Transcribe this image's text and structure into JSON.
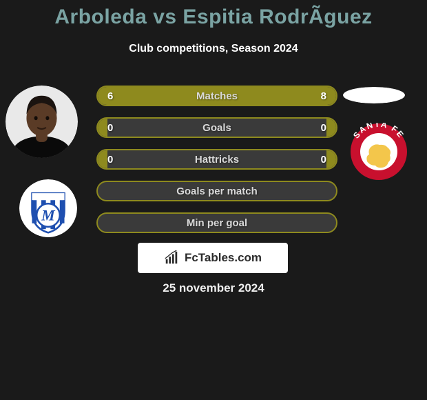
{
  "background_color": "#1a1a1a",
  "title": {
    "text": "Arboleda vs Espitia RodrÃ­guez",
    "color": "#7aa3a3",
    "fontsize": 30
  },
  "subtitle": {
    "text": "Club competitions, Season 2024",
    "color": "#ffffff",
    "fontsize": 16
  },
  "row_style": {
    "height": 30,
    "gap": 16,
    "track_bg": "#3a3a3a",
    "border_color": "#8e8a1e",
    "border_width": 2,
    "left_fill": "#8e8a1e",
    "right_fill": "#8e8a1e",
    "value_color": "#ffffff",
    "value_fontsize": 15,
    "label_color": "#d9d9d9",
    "label_fontsize": 15
  },
  "rows": [
    {
      "label": "Matches",
      "left": "6",
      "right": "8",
      "left_pct": 40,
      "right_pct": 60
    },
    {
      "label": "Goals",
      "left": "0",
      "right": "0",
      "left_pct": 4,
      "right_pct": 4
    },
    {
      "label": "Hattricks",
      "left": "0",
      "right": "0",
      "left_pct": 4,
      "right_pct": 4
    },
    {
      "label": "Goals per match",
      "left": "",
      "right": "",
      "left_pct": 0,
      "right_pct": 0
    },
    {
      "label": "Min per goal",
      "left": "",
      "right": "",
      "left_pct": 0,
      "right_pct": 0
    }
  ],
  "player_left": {
    "bg": "#e9e9e9",
    "skin": "#5a3b26",
    "hair": "#1b1410",
    "shirt": "#0a0a0a"
  },
  "club_left": {
    "bg": "#ffffff",
    "shield_top": "#ffffff",
    "shield_stripes": "#1e4fb0",
    "letter": "M",
    "letter_color": "#1e4fb0"
  },
  "player_right": {
    "fill": "#ffffff"
  },
  "club_right": {
    "ring": "#c8102e",
    "text_arc": "SANTA FE",
    "text_color": "#ffffff",
    "inner_lion": "#f3c64b",
    "inner_bg": "#ffffff"
  },
  "footer": {
    "brand_bg": "#ffffff",
    "brand_text": "FcTables.com",
    "brand_text_color": "#2b2b2b",
    "brand_icon_color": "#2b2b2b",
    "brand_fontsize": 17,
    "date_text": "25 november 2024",
    "date_color": "#eeeeee",
    "date_fontsize": 17
  }
}
